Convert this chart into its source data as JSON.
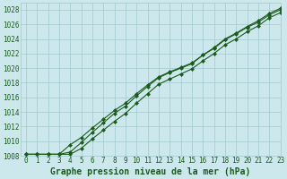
{
  "xlabel": "Graphe pression niveau de la mer (hPa)",
  "ylim": [
    1008,
    1029
  ],
  "xlim": [
    -0.5,
    23
  ],
  "yticks": [
    1008,
    1010,
    1012,
    1014,
    1016,
    1018,
    1020,
    1022,
    1024,
    1026,
    1028
  ],
  "xticks": [
    0,
    1,
    2,
    3,
    4,
    5,
    6,
    7,
    8,
    9,
    10,
    11,
    12,
    13,
    14,
    15,
    16,
    17,
    18,
    19,
    20,
    21,
    22,
    23
  ],
  "background_color": "#cde8ed",
  "grid_color": "#a0c8cc",
  "line_color": "#1a5c1a",
  "marker": "D",
  "markersize": 2.0,
  "linewidth": 0.8,
  "series": [
    [
      1008.2,
      1008.2,
      1008.2,
      1008.2,
      1008.2,
      1009.0,
      1010.3,
      1011.5,
      1012.7,
      1013.8,
      1015.2,
      1016.5,
      1017.8,
      1018.5,
      1019.2,
      1019.9,
      1021.0,
      1022.0,
      1023.2,
      1024.0,
      1025.0,
      1025.8,
      1026.9,
      1027.6
    ],
    [
      1008.2,
      1008.2,
      1008.2,
      1008.2,
      1009.5,
      1010.5,
      1011.8,
      1013.0,
      1014.2,
      1015.2,
      1016.5,
      1017.7,
      1018.8,
      1019.5,
      1020.1,
      1020.7,
      1021.8,
      1022.8,
      1024.0,
      1024.8,
      1025.7,
      1026.5,
      1027.5,
      1028.2
    ],
    [
      1008.2,
      1008.2,
      1008.2,
      1008.2,
      1008.5,
      1009.8,
      1011.2,
      1012.5,
      1013.8,
      1014.8,
      1016.2,
      1017.5,
      1018.7,
      1019.4,
      1020.0,
      1020.6,
      1021.8,
      1022.7,
      1023.9,
      1024.7,
      1025.6,
      1026.3,
      1027.3,
      1028.0
    ]
  ],
  "font_color": "#1a5c1a",
  "tick_fontsize": 5.5,
  "label_fontsize": 7.0
}
